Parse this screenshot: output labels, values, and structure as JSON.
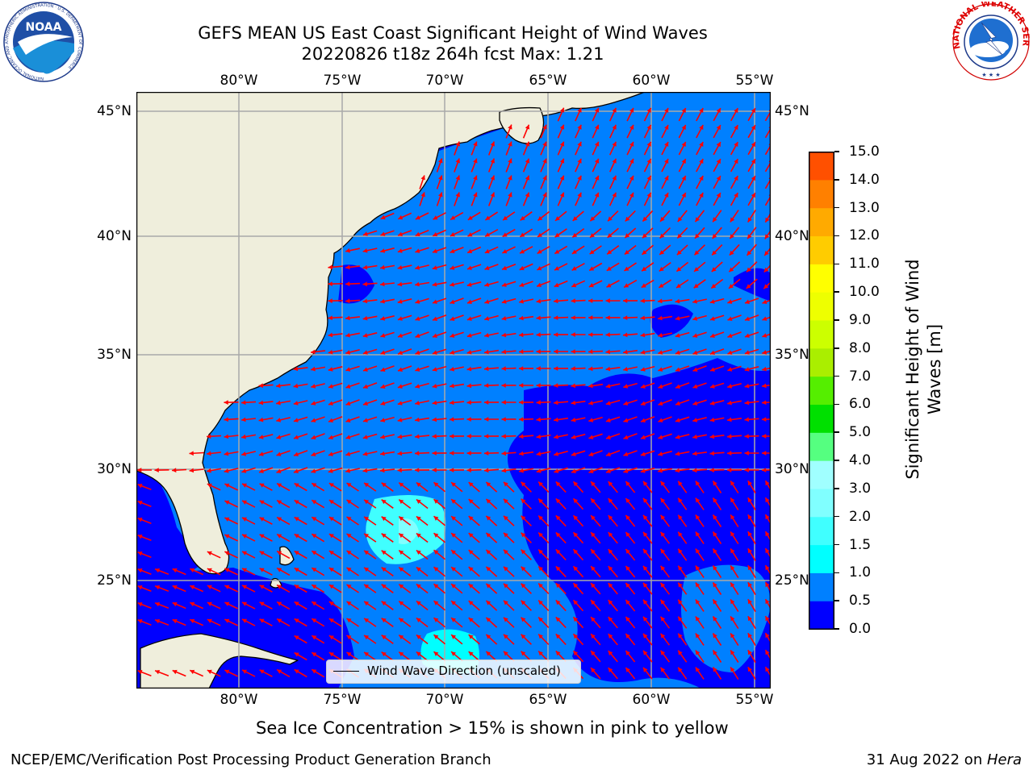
{
  "header": {
    "title_line1": "GEFS MEAN US East Coast Significant Height of Wind Waves",
    "title_line2": "20220826 t18z 264h fcst   Max: 1.21"
  },
  "logos": {
    "noaa_text": "NOAA",
    "noaa_ring_text": "NATIONAL OCEANIC AND ATMOSPHERIC ADMINISTRATION · U.S. DEPARTMENT OF COMMERCE",
    "nws_ring_text": "NATIONAL WEATHER SERVICE"
  },
  "map": {
    "lon_labels": [
      "80°W",
      "75°W",
      "70°W",
      "65°W",
      "60°W",
      "55°W"
    ],
    "lat_labels": [
      "45°N",
      "40°N",
      "35°N",
      "30°N",
      "25°N"
    ],
    "colors": {
      "land": "#efeedc",
      "grid": "#a9a9a9",
      "arrow": "#ff0000",
      "coast": "#000000"
    }
  },
  "legend": {
    "label": "Wind Wave Direction (unscaled)"
  },
  "colorbar": {
    "title": "Significant Height of Wind Waves [m]",
    "title_line1": "Significant Height of Wind",
    "title_line2": "Waves [m]",
    "ticks": [
      "0.0",
      "0.5",
      "1.0",
      "1.5",
      "2.0",
      "3.0",
      "4.0",
      "5.0",
      "6.0",
      "7.0",
      "8.0",
      "9.0",
      "10.0",
      "11.0",
      "12.0",
      "13.0",
      "14.0",
      "15.0"
    ],
    "colors": [
      "#0000ff",
      "#0080ff",
      "#00ffff",
      "#40ffff",
      "#80ffff",
      "#a0ffff",
      "#55ff80",
      "#00e000",
      "#55ee00",
      "#aaee00",
      "#ccff00",
      "#eeff00",
      "#ffff00",
      "#ffcc00",
      "#ffaa00",
      "#ff8000",
      "#ff5000",
      "#ff2000",
      "#ff0000"
    ]
  },
  "footnote": "Sea Ice Concentration > 15% is shown in pink to yellow",
  "footer": {
    "left": "NCEP/EMC/Verification Post Processing Product Generation Branch",
    "date": "31 Aug 2022 on ",
    "machine": "Hera"
  }
}
